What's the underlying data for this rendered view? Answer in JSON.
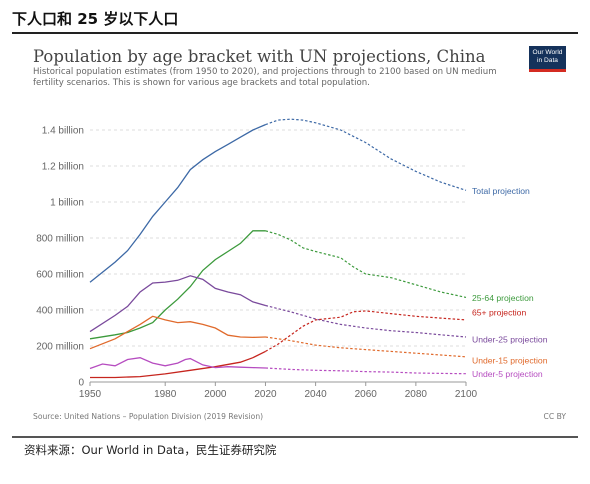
{
  "header": {
    "title": "下人口和 25 岁以下人口"
  },
  "chart_card": {
    "logo_line1": "Our World",
    "logo_line2": "in Data",
    "source": "Source: United Nations – Population Division (2019 Revision)",
    "license": "CC BY"
  },
  "footer": {
    "source": "资料来源：Our World in Data，民生证券研究院"
  },
  "colors": {
    "total": "#3d69a6",
    "age25_64": "#3c9a3c",
    "age65": "#c6251e",
    "under25": "#7a4a9c",
    "under15": "#e06a2c",
    "under5": "#b64cc0"
  },
  "chart_data": {
    "type": "line",
    "title": "Population by age bracket with UN projections, China",
    "subtitle": "Historical population estimates (from 1950 to 2020), and projections through to 2100 based on UN medium fertility scenarios. This is shown for various age brackets and total population.",
    "xlim": [
      1950,
      2100
    ],
    "ylim": [
      0,
      1500000000
    ],
    "x_ticks": [
      1950,
      1980,
      2000,
      2020,
      2040,
      2060,
      2080,
      2100
    ],
    "y_ticks": [
      0,
      200000000,
      400000000,
      600000000,
      800000000,
      1000000000,
      1200000000,
      1400000000
    ],
    "y_tick_labels": [
      "0",
      "200 million",
      "400 million",
      "600 million",
      "800 million",
      "1 billion",
      "1.2 billion",
      "1.4 billion"
    ],
    "projection_start": 2020,
    "series": [
      {
        "key": "total",
        "label": "Total projection",
        "x": [
          1950,
          1960,
          1965,
          1970,
          1975,
          1980,
          1985,
          1990,
          1995,
          2000,
          2005,
          2010,
          2015,
          2020,
          2025,
          2030,
          2035,
          2040,
          2050,
          2060,
          2070,
          2080,
          2090,
          2100
        ],
        "y": [
          554,
          666,
          730,
          820,
          920,
          1000,
          1080,
          1180,
          1235,
          1280,
          1320,
          1360,
          1400,
          1430,
          1455,
          1460,
          1455,
          1440,
          1400,
          1330,
          1240,
          1170,
          1110,
          1065
        ]
      },
      {
        "key": "age25_64",
        "label": "25-64 projection",
        "x": [
          1950,
          1960,
          1965,
          1970,
          1975,
          1980,
          1985,
          1990,
          1995,
          2000,
          2005,
          2010,
          2015,
          2020,
          2025,
          2030,
          2035,
          2040,
          2050,
          2055,
          2060,
          2070,
          2080,
          2090,
          2100
        ],
        "y": [
          240,
          262,
          275,
          300,
          330,
          400,
          460,
          530,
          620,
          680,
          725,
          770,
          840,
          840,
          820,
          790,
          745,
          725,
          690,
          640,
          600,
          580,
          540,
          500,
          470
        ]
      },
      {
        "key": "under25",
        "label": "Under-25 projection",
        "x": [
          1950,
          1960,
          1965,
          1970,
          1975,
          1980,
          1985,
          1990,
          1995,
          2000,
          2005,
          2010,
          2015,
          2020,
          2030,
          2040,
          2050,
          2060,
          2070,
          2080,
          2090,
          2100
        ],
        "y": [
          280,
          370,
          420,
          500,
          550,
          555,
          565,
          590,
          570,
          520,
          500,
          485,
          445,
          425,
          390,
          350,
          320,
          300,
          285,
          275,
          262,
          250
        ]
      },
      {
        "key": "age65",
        "label": "65+ projection",
        "x": [
          1950,
          1960,
          1970,
          1980,
          1990,
          2000,
          2010,
          2015,
          2020,
          2025,
          2030,
          2035,
          2040,
          2050,
          2055,
          2060,
          2070,
          2080,
          2090,
          2100
        ],
        "y": [
          25,
          25,
          30,
          45,
          65,
          85,
          110,
          135,
          170,
          210,
          260,
          310,
          345,
          360,
          390,
          395,
          380,
          365,
          355,
          345
        ]
      },
      {
        "key": "under15",
        "label": "Under-15 projection",
        "x": [
          1950,
          1960,
          1965,
          1970,
          1975,
          1980,
          1985,
          1990,
          1995,
          2000,
          2005,
          2010,
          2015,
          2020,
          2030,
          2040,
          2050,
          2060,
          2070,
          2080,
          2090,
          2100
        ],
        "y": [
          185,
          240,
          280,
          320,
          365,
          345,
          330,
          335,
          320,
          300,
          260,
          250,
          248,
          250,
          230,
          205,
          190,
          180,
          170,
          160,
          150,
          140
        ]
      },
      {
        "key": "under5",
        "label": "Under-5 projection",
        "x": [
          1950,
          1955,
          1960,
          1965,
          1970,
          1975,
          1980,
          1985,
          1988,
          1990,
          1995,
          2000,
          2005,
          2010,
          2015,
          2020,
          2030,
          2040,
          2050,
          2060,
          2070,
          2080,
          2090,
          2100
        ],
        "y": [
          75,
          100,
          90,
          125,
          135,
          105,
          90,
          105,
          125,
          130,
          95,
          80,
          85,
          82,
          80,
          78,
          70,
          65,
          62,
          58,
          55,
          50,
          48,
          46
        ]
      }
    ]
  }
}
